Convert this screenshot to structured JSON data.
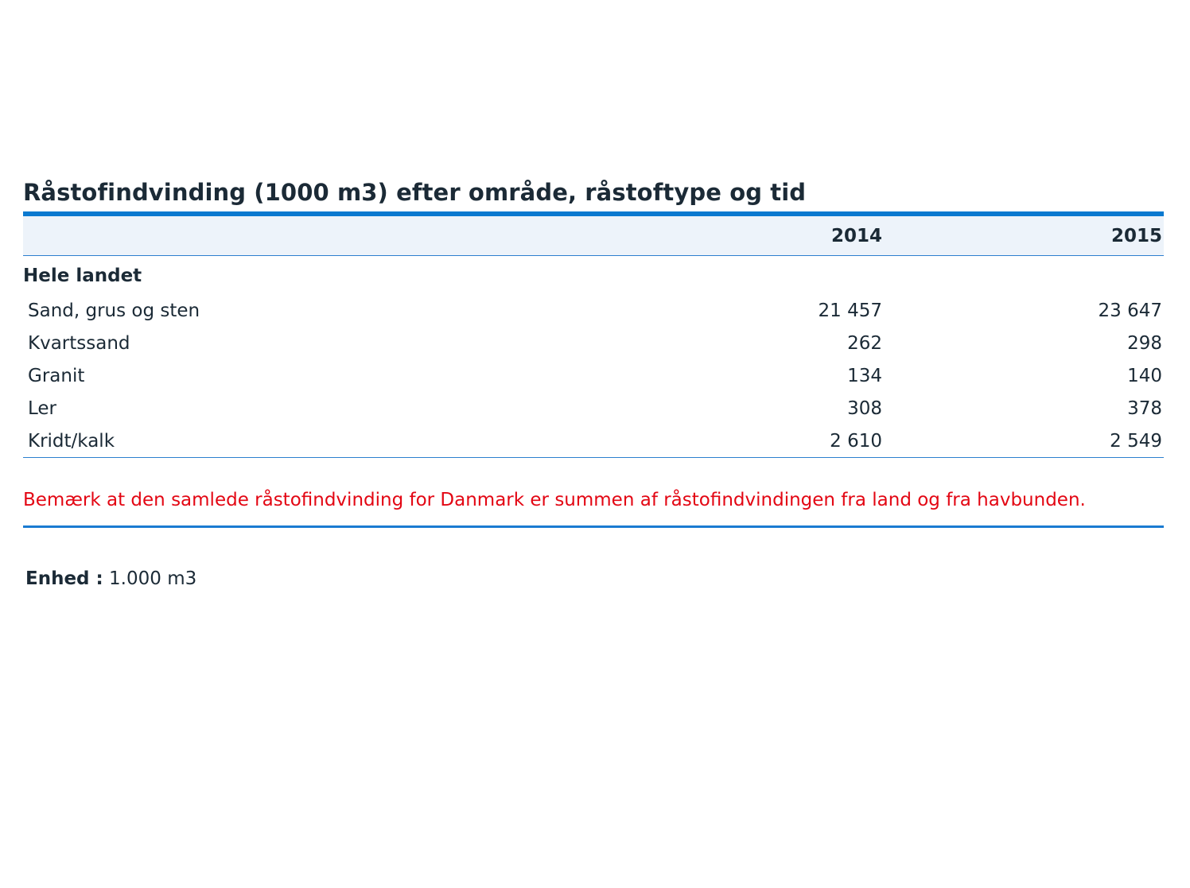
{
  "chart_data": {
    "type": "table",
    "title": "Råstofindvinding (1000 m3) efter område, råstoftype og tid",
    "columns": [
      "2014",
      "2015"
    ],
    "group": "Hele landet",
    "rows": [
      {
        "label": "Sand, grus og sten",
        "values": [
          "21 457",
          "23 647"
        ]
      },
      {
        "label": "Kvartssand",
        "values": [
          "262",
          "298"
        ]
      },
      {
        "label": "Granit",
        "values": [
          "134",
          "140"
        ]
      },
      {
        "label": "Ler",
        "values": [
          "308",
          "378"
        ]
      },
      {
        "label": "Kridt/kalk",
        "values": [
          "2 610",
          "2 549"
        ]
      }
    ],
    "note": "Bemærk at den samlede råstofindvinding for Danmark er summen af råstofindvindingen fra land og fra havbunden.",
    "unit_label": "Enhed :",
    "unit_value": "1.000 m3"
  },
  "colors": {
    "accent_rule": "#0a79d0",
    "header_background": "#edf3fa",
    "note_text": "#e30613",
    "body_text": "#1b2a36"
  }
}
